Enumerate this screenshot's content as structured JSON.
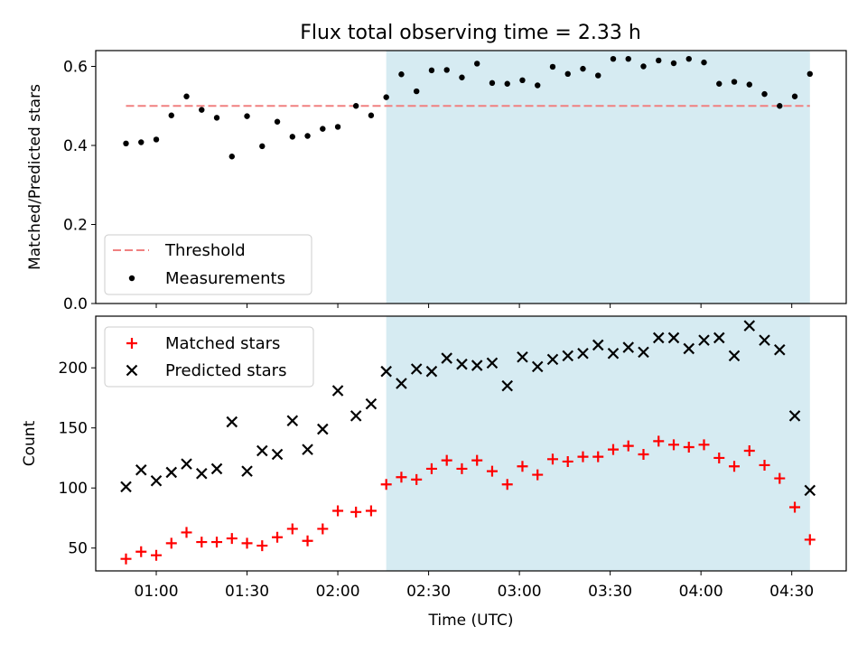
{
  "title": "Flux total observing time = 2.33 h",
  "colors": {
    "threshold": "#f08080",
    "measurement": "#000000",
    "matched": "#ff0000",
    "predicted": "#000000",
    "span": "#add8e6"
  },
  "chart_data": [
    {
      "type": "scatter",
      "ylabel": "Matched/Predicted stars",
      "ylim": [
        0,
        0.64
      ],
      "yticks": [
        0.0,
        0.2,
        0.4,
        0.6
      ],
      "ytick_labels": [
        "0.0",
        "0.2",
        "0.4",
        "0.6"
      ],
      "xlim": [
        "00:40",
        "04:48"
      ],
      "shaded_span": [
        "02:16",
        "04:36"
      ],
      "legend_position": "lower-left",
      "threshold": {
        "name": "Threshold",
        "value": 0.5,
        "x_range": [
          "00:50",
          "04:36"
        ]
      },
      "series": [
        {
          "name": "Measurements",
          "x": [
            "00:50",
            "00:55",
            "01:00",
            "01:05",
            "01:10",
            "01:15",
            "01:20",
            "01:25",
            "01:30",
            "01:35",
            "01:40",
            "01:45",
            "01:50",
            "01:55",
            "02:00",
            "02:06",
            "02:11",
            "02:16",
            "02:21",
            "02:26",
            "02:31",
            "02:36",
            "02:41",
            "02:46",
            "02:51",
            "02:56",
            "03:01",
            "03:06",
            "03:11",
            "03:16",
            "03:21",
            "03:26",
            "03:31",
            "03:36",
            "03:41",
            "03:46",
            "03:51",
            "03:56",
            "04:01",
            "04:06",
            "04:11",
            "04:16",
            "04:21",
            "04:26",
            "04:31",
            "04:36"
          ],
          "y": [
            0.405,
            0.408,
            0.415,
            0.476,
            0.524,
            0.49,
            0.47,
            0.372,
            0.474,
            0.398,
            0.46,
            0.422,
            0.424,
            0.442,
            0.447,
            0.5,
            0.476,
            0.522,
            0.58,
            0.537,
            0.59,
            0.591,
            0.572,
            0.607,
            0.558,
            0.556,
            0.565,
            0.552,
            0.599,
            0.581,
            0.594,
            0.577,
            0.619,
            0.619,
            0.6,
            0.615,
            0.608,
            0.619,
            0.61,
            0.556,
            0.561,
            0.554,
            0.53,
            0.5,
            0.524,
            0.581
          ]
        }
      ]
    },
    {
      "type": "scatter",
      "ylabel": "Count",
      "xlabel": "Time (UTC)",
      "ylim": [
        31,
        243
      ],
      "yticks": [
        50,
        100,
        150,
        200
      ],
      "ytick_labels": [
        "50",
        "100",
        "150",
        "200"
      ],
      "xlim": [
        "00:40",
        "04:48"
      ],
      "xticks": [
        "01:00",
        "01:30",
        "02:00",
        "02:30",
        "03:00",
        "03:30",
        "04:00",
        "04:30"
      ],
      "shaded_span": [
        "02:16",
        "04:36"
      ],
      "legend_position": "upper-left",
      "series": [
        {
          "name": "Matched stars",
          "marker": "plus",
          "x": [
            "00:50",
            "00:55",
            "01:00",
            "01:05",
            "01:10",
            "01:15",
            "01:20",
            "01:25",
            "01:30",
            "01:35",
            "01:40",
            "01:45",
            "01:50",
            "01:55",
            "02:00",
            "02:06",
            "02:11",
            "02:16",
            "02:21",
            "02:26",
            "02:31",
            "02:36",
            "02:41",
            "02:46",
            "02:51",
            "02:56",
            "03:01",
            "03:06",
            "03:11",
            "03:16",
            "03:21",
            "03:26",
            "03:31",
            "03:36",
            "03:41",
            "03:46",
            "03:51",
            "03:56",
            "04:01",
            "04:06",
            "04:11",
            "04:16",
            "04:21",
            "04:26",
            "04:31",
            "04:36"
          ],
          "y": [
            41,
            47,
            44,
            54,
            63,
            55,
            55,
            58,
            54,
            52,
            59,
            66,
            56,
            66,
            81,
            80,
            81,
            103,
            109,
            107,
            116,
            123,
            116,
            123,
            114,
            103,
            118,
            111,
            124,
            122,
            126,
            126,
            132,
            135,
            128,
            139,
            136,
            134,
            136,
            125,
            118,
            131,
            119,
            108,
            84,
            57
          ]
        },
        {
          "name": "Predicted stars",
          "marker": "x",
          "x": [
            "00:50",
            "00:55",
            "01:00",
            "01:05",
            "01:10",
            "01:15",
            "01:20",
            "01:25",
            "01:30",
            "01:35",
            "01:40",
            "01:45",
            "01:50",
            "01:55",
            "02:00",
            "02:06",
            "02:11",
            "02:16",
            "02:21",
            "02:26",
            "02:31",
            "02:36",
            "02:41",
            "02:46",
            "02:51",
            "02:56",
            "03:01",
            "03:06",
            "03:11",
            "03:16",
            "03:21",
            "03:26",
            "03:31",
            "03:36",
            "03:41",
            "03:46",
            "03:51",
            "03:56",
            "04:01",
            "04:06",
            "04:11",
            "04:16",
            "04:21",
            "04:26",
            "04:31",
            "04:36"
          ],
          "y": [
            101,
            115,
            106,
            113,
            120,
            112,
            116,
            155,
            114,
            131,
            128,
            156,
            132,
            149,
            181,
            160,
            170,
            197,
            187,
            199,
            197,
            208,
            203,
            202,
            204,
            185,
            209,
            201,
            207,
            210,
            212,
            219,
            212,
            217,
            213,
            225,
            225,
            216,
            223,
            225,
            210,
            235,
            223,
            215,
            160,
            98
          ]
        }
      ]
    }
  ]
}
